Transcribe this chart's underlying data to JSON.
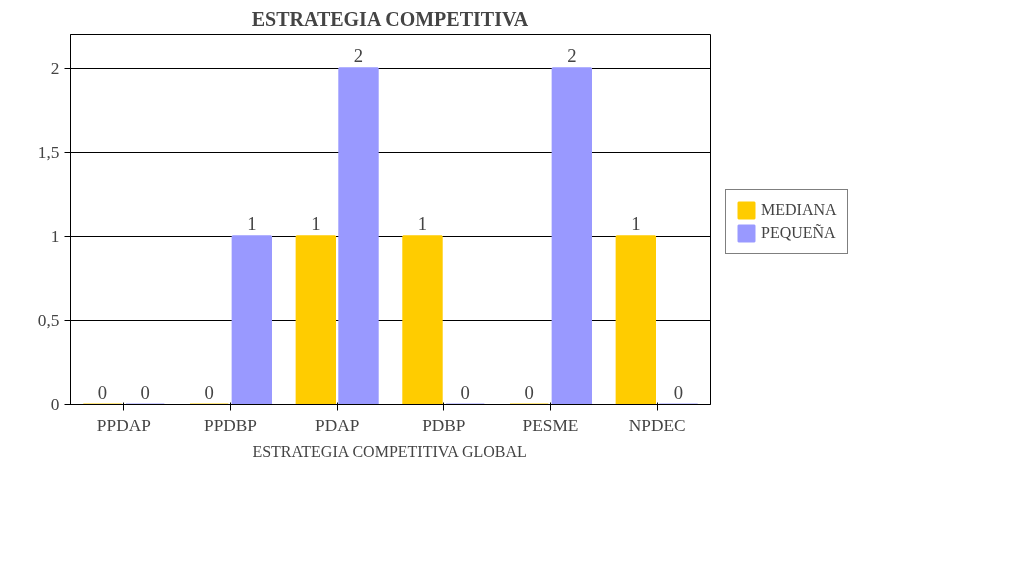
{
  "chart_data": {
    "type": "bar",
    "title": "ESTRATEGIA COMPETITIVA",
    "xlabel": "ESTRATEGIA COMPETITIVA GLOBAL",
    "categories": [
      "PPDAP",
      "PPDBP",
      "PDAP",
      "PDBP",
      "PESME",
      "NPDEC"
    ],
    "series": [
      {
        "name": "MEDIANA",
        "color": "#ffcc00",
        "values": [
          0,
          0,
          1,
          1,
          0,
          1
        ]
      },
      {
        "name": "PEQUEÑA",
        "color": "#9999ff",
        "values": [
          0,
          1,
          2,
          0,
          2,
          0
        ]
      }
    ],
    "ylim": [
      0,
      2.2
    ],
    "yticks": [
      0,
      {
        "value": 0.5,
        "label": "0,5"
      },
      1,
      {
        "value": 1.5,
        "label": "1,5"
      },
      2
    ],
    "grid": "y",
    "legend": "right",
    "data_labels": true
  }
}
